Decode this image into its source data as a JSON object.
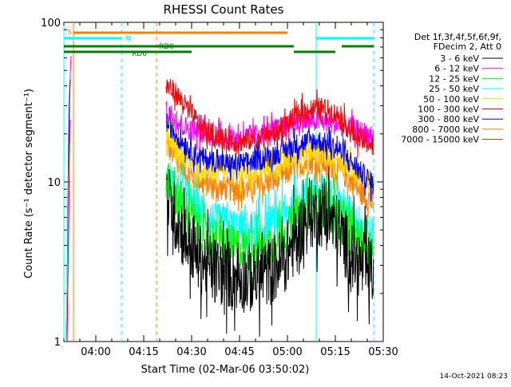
{
  "chart_data": {
    "type": "line",
    "title": "RHESSI Count Rates",
    "xlabel": "Start Time (02-Mar-06 03:50:02)",
    "ylabel": "Count Rate (s⁻¹ detector segment⁻¹)",
    "yscale": "log",
    "ylim": [
      1,
      100
    ],
    "xlim": [
      "03:50",
      "05:30"
    ],
    "x_tick_labels": [
      "04:00",
      "04:15",
      "04:30",
      "04:45",
      "05:00",
      "05:15",
      "05:30"
    ],
    "y_tick_labels": [
      "1",
      "10",
      "100"
    ],
    "footer_date": "14-Oct-2021 08:23",
    "legend": {
      "placement": "right",
      "header": [
        "Det 1f,3f,4f,5f,6f,9f,",
        "FDecim 2, Att 0"
      ]
    },
    "flags": [
      {
        "label": "S",
        "color": "#ff8000",
        "segments": [
          [
            "03:53",
            "05:00"
          ]
        ]
      },
      {
        "label": "N",
        "color": "#00ffff",
        "segments": [
          [
            "03:50",
            "04:08"
          ],
          [
            "05:09",
            "05:27"
          ]
        ]
      },
      {
        "label": "RD0",
        "color": "#008000",
        "segments": [
          [
            "03:50",
            "05:02"
          ],
          [
            "05:17",
            "05:27"
          ]
        ]
      },
      {
        "label": "RD6",
        "color": "#008000",
        "segments": [
          [
            "03:50",
            "04:20"
          ],
          [
            "04:19",
            "04:30"
          ],
          [
            "05:02",
            "05:15"
          ]
        ]
      }
    ],
    "vlines": [
      {
        "x": "03:50",
        "color": "#00ffff",
        "style": "solid"
      },
      {
        "x": "03:53",
        "color": "#ff8000",
        "style": "solid"
      },
      {
        "x": "04:08",
        "color": "#00ffff",
        "style": "dashed"
      },
      {
        "x": "04:19",
        "color": "#ff8000",
        "style": "dashed"
      },
      {
        "x": "05:09",
        "color": "#00ffff",
        "style": "solid"
      },
      {
        "x": "05:27",
        "color": "#00ffff",
        "style": "dashed"
      }
    ],
    "series": [
      {
        "name": "3 - 6 keV",
        "color": "#000000",
        "x": [
          "04:22",
          "04:25",
          "04:28",
          "04:31",
          "04:34",
          "04:37",
          "04:40",
          "04:43",
          "04:46",
          "04:49",
          "04:52",
          "04:55",
          "04:58",
          "05:01",
          "05:04",
          "05:07",
          "05:10",
          "05:13",
          "05:16",
          "05:19",
          "05:22",
          "05:25",
          "05:27"
        ],
        "y": [
          8.5,
          6.0,
          4.5,
          3.6,
          3.1,
          2.8,
          2.7,
          2.6,
          2.5,
          2.5,
          2.6,
          2.8,
          3.1,
          3.8,
          5.0,
          6.2,
          6.5,
          6.0,
          5.0,
          3.8,
          3.1,
          2.8,
          2.7
        ]
      },
      {
        "name": "6 - 12 keV",
        "color": "#ff00ff",
        "x": [
          "04:22",
          "04:25",
          "04:28",
          "04:31",
          "04:34",
          "04:37",
          "04:40",
          "04:43",
          "04:46",
          "04:49",
          "04:52",
          "04:55",
          "04:58",
          "05:01",
          "05:04",
          "05:07",
          "05:10",
          "05:13",
          "05:16",
          "05:19",
          "05:22",
          "05:25",
          "05:27"
        ],
        "y": [
          28,
          25,
          22,
          21,
          20,
          19.5,
          19,
          19,
          19,
          19.5,
          20,
          21,
          22,
          23,
          24,
          24,
          24,
          23.5,
          23,
          22,
          21,
          20,
          19
        ]
      },
      {
        "name": "12 - 25 keV",
        "color": "#00ff00",
        "x": [
          "04:22",
          "04:25",
          "04:28",
          "04:31",
          "04:34",
          "04:37",
          "04:40",
          "04:43",
          "04:46",
          "04:49",
          "04:52",
          "04:55",
          "04:58",
          "05:01",
          "05:04",
          "05:07",
          "05:10",
          "05:13",
          "05:16",
          "05:19",
          "05:22",
          "05:25",
          "05:27"
        ],
        "y": [
          10.5,
          8.5,
          6.8,
          5.6,
          4.8,
          4.3,
          4.0,
          3.9,
          3.8,
          3.8,
          3.9,
          4.1,
          4.5,
          5.2,
          6.2,
          7.0,
          7.1,
          6.7,
          6.0,
          5.0,
          4.3,
          3.9,
          3.7
        ]
      },
      {
        "name": "25 - 50 keV",
        "color": "#00ffff",
        "x": [
          "04:22",
          "04:25",
          "04:28",
          "04:31",
          "04:34",
          "04:37",
          "04:40",
          "04:43",
          "04:46",
          "04:49",
          "04:52",
          "04:55",
          "04:58",
          "05:01",
          "05:04",
          "05:07",
          "05:10",
          "05:13",
          "05:16",
          "05:19",
          "05:22",
          "05:25",
          "05:27"
        ],
        "y": [
          11,
          9.5,
          8.0,
          7.0,
          6.2,
          5.7,
          5.4,
          5.2,
          5.1,
          5.1,
          5.2,
          5.5,
          6.0,
          6.8,
          7.8,
          8.6,
          8.7,
          8.2,
          7.5,
          6.5,
          5.6,
          5.0,
          4.6
        ]
      },
      {
        "name": "50 - 100 keV",
        "color": "#ffd700",
        "x": [
          "04:22",
          "04:25",
          "04:28",
          "04:31",
          "04:34",
          "04:37",
          "04:40",
          "04:43",
          "04:46",
          "04:49",
          "04:52",
          "04:55",
          "04:58",
          "05:01",
          "05:04",
          "05:07",
          "05:10",
          "05:13",
          "05:16",
          "05:19",
          "05:22",
          "05:25",
          "05:27"
        ],
        "y": [
          18,
          16,
          14,
          12.5,
          12,
          11.8,
          11.6,
          11.5,
          11.5,
          11.7,
          12,
          12.5,
          13,
          14,
          15,
          15.5,
          15.5,
          15,
          14,
          12.5,
          11.5,
          10.5,
          9.5
        ]
      },
      {
        "name": "100 - 300 keV",
        "color": "#ff0000",
        "x": [
          "04:22",
          "04:25",
          "04:28",
          "04:31",
          "04:34",
          "04:37",
          "04:40",
          "04:43",
          "04:46",
          "04:49",
          "04:52",
          "04:55",
          "04:58",
          "05:01",
          "05:04",
          "05:07",
          "05:10",
          "05:13",
          "05:16",
          "05:19",
          "05:22",
          "05:25",
          "05:27"
        ],
        "y": [
          40,
          36,
          30,
          25,
          21,
          19.5,
          18.5,
          18,
          18,
          18.5,
          19,
          20,
          21.5,
          24,
          27,
          28.5,
          29,
          28,
          26,
          22,
          19,
          17.5,
          16.5
        ]
      },
      {
        "name": "300 - 800 keV",
        "color": "#0000ff",
        "x": [
          "04:22",
          "04:25",
          "04:28",
          "04:31",
          "04:34",
          "04:37",
          "04:40",
          "04:43",
          "04:46",
          "04:49",
          "04:52",
          "04:55",
          "04:58",
          "05:01",
          "05:04",
          "05:07",
          "05:10",
          "05:13",
          "05:16",
          "05:19",
          "05:22",
          "05:25",
          "05:27"
        ],
        "y": [
          24,
          20,
          17,
          15,
          14,
          13.5,
          13,
          13,
          13,
          13.5,
          14,
          14.5,
          15.5,
          16.5,
          17.5,
          18,
          18,
          17,
          16,
          14,
          12,
          10.5,
          9.5
        ]
      },
      {
        "name": "800 - 7000 keV",
        "color": "#ff8000",
        "x": [
          "04:22",
          "04:25",
          "04:28",
          "04:31",
          "04:34",
          "04:37",
          "04:40",
          "04:43",
          "04:46",
          "04:49",
          "04:52",
          "04:55",
          "04:58",
          "05:01",
          "05:04",
          "05:07",
          "05:10",
          "05:13",
          "05:16",
          "05:19",
          "05:22",
          "05:25",
          "05:27"
        ],
        "y": [
          17,
          14,
          11.5,
          10.5,
          9.8,
          9.4,
          9.1,
          9.0,
          9.0,
          9.2,
          9.5,
          10,
          10.8,
          11.8,
          12.8,
          13.3,
          13.3,
          12.8,
          12,
          10.5,
          9,
          8,
          7.2
        ]
      },
      {
        "name": "7000 - 15000 keV",
        "color": "#8b4513",
        "x": [],
        "y": []
      }
    ]
  }
}
